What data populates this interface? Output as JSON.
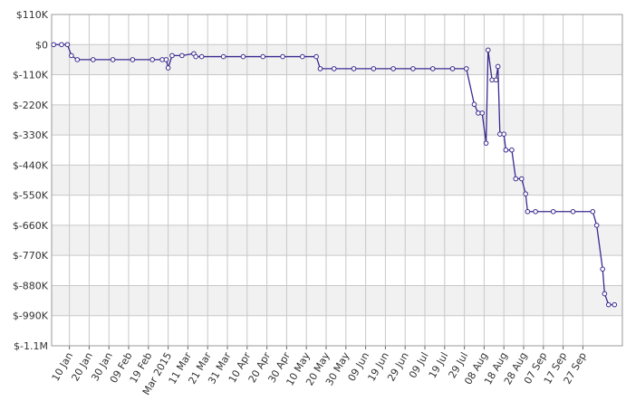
{
  "chart_data": {
    "type": "line",
    "color": "#3a2a8f",
    "grid": true,
    "ylim": [
      -1100000,
      110000
    ],
    "yticks": [
      {
        "value": 110000,
        "label": "$110K"
      },
      {
        "value": 0,
        "label": "$0"
      },
      {
        "value": -110000,
        "label": "$-110K"
      },
      {
        "value": -220000,
        "label": "$-220K"
      },
      {
        "value": -330000,
        "label": "$-330K"
      },
      {
        "value": -440000,
        "label": "$-440K"
      },
      {
        "value": -550000,
        "label": "$-550K"
      },
      {
        "value": -660000,
        "label": "$-660K"
      },
      {
        "value": -770000,
        "label": "$-770K"
      },
      {
        "value": -880000,
        "label": "$-880K"
      },
      {
        "value": -990000,
        "label": "$-990K"
      },
      {
        "value": -1100000,
        "label": "$-1.1M"
      }
    ],
    "xlim": [
      "2015-01-01",
      "2015-10-17"
    ],
    "xticks": [
      {
        "value": "2015-01-10",
        "label": "10 Jan"
      },
      {
        "value": "2015-01-20",
        "label": "20 Jan"
      },
      {
        "value": "2015-01-30",
        "label": "30 Jan"
      },
      {
        "value": "2015-02-09",
        "label": "09 Feb"
      },
      {
        "value": "2015-02-19",
        "label": "19 Feb"
      },
      {
        "value": "2015-03-01",
        "label": "Mar 2015"
      },
      {
        "value": "2015-03-11",
        "label": "11 Mar"
      },
      {
        "value": "2015-03-21",
        "label": "21 Mar"
      },
      {
        "value": "2015-03-31",
        "label": "31 Mar"
      },
      {
        "value": "2015-04-10",
        "label": "10 Apr"
      },
      {
        "value": "2015-04-20",
        "label": "20 Apr"
      },
      {
        "value": "2015-04-30",
        "label": "30 Apr"
      },
      {
        "value": "2015-05-10",
        "label": "10 May"
      },
      {
        "value": "2015-05-20",
        "label": "20 May"
      },
      {
        "value": "2015-05-30",
        "label": "30 May"
      },
      {
        "value": "2015-06-09",
        "label": "09 Jun"
      },
      {
        "value": "2015-06-19",
        "label": "19 Jun"
      },
      {
        "value": "2015-06-29",
        "label": "29 Jun"
      },
      {
        "value": "2015-07-09",
        "label": "09 Jul"
      },
      {
        "value": "2015-07-19",
        "label": "19 Jul"
      },
      {
        "value": "2015-07-29",
        "label": "29 Jul"
      },
      {
        "value": "2015-08-08",
        "label": "08 Aug"
      },
      {
        "value": "2015-08-18",
        "label": "18 Aug"
      },
      {
        "value": "2015-08-28",
        "label": "28 Aug"
      },
      {
        "value": "2015-09-07",
        "label": "07 Sep"
      },
      {
        "value": "2015-09-17",
        "label": "17 Sep"
      },
      {
        "value": "2015-09-27",
        "label": "27 Sep"
      }
    ],
    "x": [
      "2015-01-02",
      "2015-01-06",
      "2015-01-09",
      "2015-01-11",
      "2015-01-14",
      "2015-01-22",
      "2015-02-01",
      "2015-02-11",
      "2015-02-21",
      "2015-02-26",
      "2015-02-28",
      "2015-03-01",
      "2015-03-03",
      "2015-03-08",
      "2015-03-14",
      "2015-03-15",
      "2015-03-18",
      "2015-03-29",
      "2015-04-08",
      "2015-04-18",
      "2015-04-28",
      "2015-05-08",
      "2015-05-15",
      "2015-05-17",
      "2015-05-24",
      "2015-06-03",
      "2015-06-13",
      "2015-06-23",
      "2015-07-03",
      "2015-07-13",
      "2015-07-23",
      "2015-07-30",
      "2015-08-03",
      "2015-08-05",
      "2015-08-07",
      "2015-08-09",
      "2015-08-10",
      "2015-08-12",
      "2015-08-14",
      "2015-08-15",
      "2015-08-16",
      "2015-08-18",
      "2015-08-19",
      "2015-08-22",
      "2015-08-24",
      "2015-08-27",
      "2015-08-29",
      "2015-08-30",
      "2015-09-03",
      "2015-09-12",
      "2015-09-22",
      "2015-10-02",
      "2015-10-04",
      "2015-10-07",
      "2015-10-08",
      "2015-10-10",
      "2015-10-13"
    ],
    "values": [
      0,
      0,
      0,
      -40000,
      -55000,
      -55000,
      -55000,
      -55000,
      -55000,
      -55000,
      -55000,
      -85000,
      -40000,
      -40000,
      -33000,
      -44000,
      -44000,
      -44000,
      -44000,
      -44000,
      -44000,
      -44000,
      -44000,
      -88000,
      -88000,
      -88000,
      -88000,
      -88000,
      -88000,
      -88000,
      -88000,
      -88000,
      -218000,
      -250000,
      -250000,
      -360000,
      -20000,
      -129000,
      -129000,
      -80000,
      -327000,
      -327000,
      -385000,
      -385000,
      -490000,
      -490000,
      -545000,
      -610000,
      -610000,
      -610000,
      -610000,
      -610000,
      -660000,
      -820000,
      -910000,
      -950000,
      -950000
    ]
  }
}
